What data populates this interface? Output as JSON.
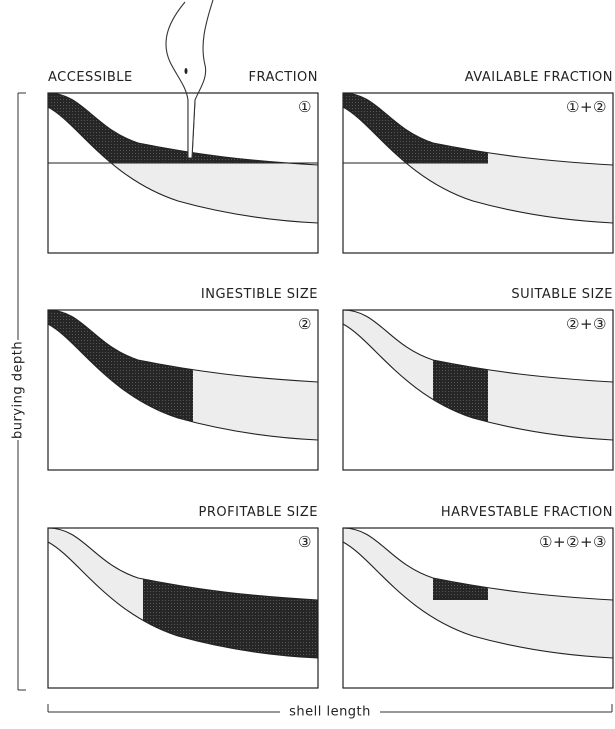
{
  "axis_labels": {
    "y": "burying depth",
    "x": "shell length"
  },
  "panels": [
    {
      "title": [
        "ACCESSIBLE",
        "FRACTION"
      ],
      "marker": "①"
    },
    {
      "title": "AVAILABLE FRACTION",
      "marker": "①+②"
    },
    {
      "title": "INGESTIBLE SIZE",
      "marker": "②"
    },
    {
      "title": "SUITABLE SIZE",
      "marker": "②+③"
    },
    {
      "title": "PROFITABLE SIZE",
      "marker": "③"
    },
    {
      "title": "HARVESTABLE FRACTION",
      "marker": "①+②+③"
    }
  ]
}
